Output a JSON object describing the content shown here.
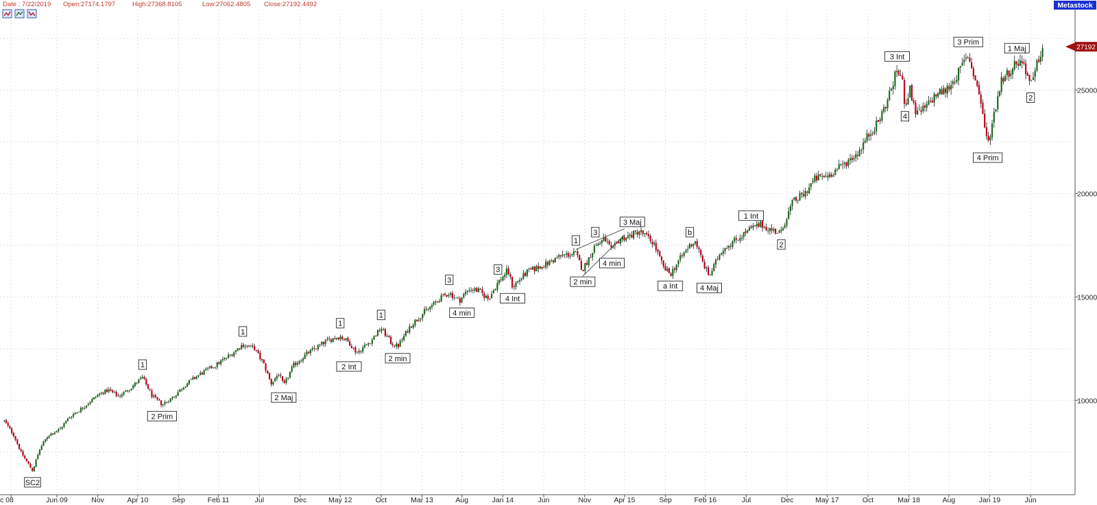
{
  "header": {
    "date": "Date : 7/22/2019",
    "open": "Open:27174.1797",
    "high": "High:27368.8105",
    "low": "Low:27062.4805",
    "close": "Close:27192.4492",
    "badge": "Metastock",
    "last_price_tag": "27192"
  },
  "toolbar_icons": [
    "chart-tool-icon",
    "chart-tool-icon",
    "chart-tool-icon"
  ],
  "colors": {
    "up": "#1a6b1a",
    "down": "#c0001a",
    "header_text": "#c0392b",
    "badge_bg": "#1a2fd0",
    "price_tag": "#a01010"
  },
  "chart_data": {
    "type": "candlestick",
    "y_ticks": [
      10000,
      15000,
      20000,
      25000
    ],
    "y_tick_labels": [
      "10000",
      "15000",
      "20000",
      "25000"
    ],
    "ylim": [
      6000,
      28000
    ],
    "grid": true,
    "x_labels": [
      "c 08",
      "Jun 09",
      "Nov",
      "Apr 10",
      "Sep",
      "Feb 11",
      "Jul",
      "Dec",
      "May 12",
      "Oct",
      "Mar 13",
      "Aug",
      "Jan 14",
      "Jun",
      "Nov",
      "Apr 15",
      "Sep",
      "Feb 16",
      "Jul",
      "Dec",
      "May 17",
      "Oct",
      "Mar 18",
      "Aug",
      "Jan 19",
      "Jun"
    ],
    "x_dates": [
      2008.95,
      2009.42,
      2009.84,
      2010.25,
      2010.67,
      2011.08,
      2011.5,
      2011.92,
      2012.33,
      2012.75,
      2013.17,
      2013.58,
      2014.0,
      2014.42,
      2014.84,
      2015.25,
      2015.67,
      2016.08,
      2016.5,
      2016.92,
      2017.33,
      2017.75,
      2018.17,
      2018.58,
      2019.0,
      2019.42
    ],
    "x_range": [
      2008.85,
      2019.75
    ],
    "path": [
      [
        2008.88,
        9000
      ],
      [
        2008.98,
        8300
      ],
      [
        2009.05,
        7500
      ],
      [
        2009.17,
        6600
      ],
      [
        2009.25,
        7700
      ],
      [
        2009.33,
        8300
      ],
      [
        2009.45,
        8600
      ],
      [
        2009.55,
        9200
      ],
      [
        2009.7,
        9700
      ],
      [
        2009.85,
        10300
      ],
      [
        2009.95,
        10500
      ],
      [
        2010.05,
        10200
      ],
      [
        2010.15,
        10500
      ],
      [
        2010.3,
        11100
      ],
      [
        2010.4,
        10200
      ],
      [
        2010.5,
        9800
      ],
      [
        2010.6,
        10100
      ],
      [
        2010.75,
        10800
      ],
      [
        2010.9,
        11300
      ],
      [
        2011.05,
        11700
      ],
      [
        2011.2,
        12200
      ],
      [
        2011.33,
        12700
      ],
      [
        2011.45,
        12500
      ],
      [
        2011.55,
        11700
      ],
      [
        2011.62,
        10800
      ],
      [
        2011.7,
        11300
      ],
      [
        2011.75,
        10700
      ],
      [
        2011.85,
        11700
      ],
      [
        2012.0,
        12300
      ],
      [
        2012.2,
        12900
      ],
      [
        2012.33,
        13100
      ],
      [
        2012.42,
        12800
      ],
      [
        2012.5,
        12300
      ],
      [
        2012.65,
        12900
      ],
      [
        2012.75,
        13500
      ],
      [
        2012.85,
        12800
      ],
      [
        2012.92,
        12600
      ],
      [
        2013.05,
        13600
      ],
      [
        2013.2,
        14300
      ],
      [
        2013.38,
        15000
      ],
      [
        2013.45,
        15200
      ],
      [
        2013.55,
        14800
      ],
      [
        2013.65,
        15400
      ],
      [
        2013.75,
        15300
      ],
      [
        2013.85,
        14900
      ],
      [
        2013.95,
        15700
      ],
      [
        2014.05,
        16300
      ],
      [
        2014.1,
        15500
      ],
      [
        2014.25,
        16200
      ],
      [
        2014.45,
        16600
      ],
      [
        2014.6,
        17000
      ],
      [
        2014.75,
        17100
      ],
      [
        2014.82,
        16300
      ],
      [
        2014.95,
        17500
      ],
      [
        2015.05,
        17800
      ],
      [
        2015.12,
        17200
      ],
      [
        2015.2,
        17800
      ],
      [
        2015.33,
        18000
      ],
      [
        2015.4,
        18200
      ],
      [
        2015.48,
        17900
      ],
      [
        2015.55,
        17600
      ],
      [
        2015.65,
        16400
      ],
      [
        2015.72,
        16100
      ],
      [
        2015.8,
        16700
      ],
      [
        2015.92,
        17500
      ],
      [
        2015.98,
        17700
      ],
      [
        2016.05,
        16700
      ],
      [
        2016.12,
        16000
      ],
      [
        2016.25,
        17300
      ],
      [
        2016.4,
        17800
      ],
      [
        2016.55,
        18300
      ],
      [
        2016.65,
        18500
      ],
      [
        2016.78,
        18200
      ],
      [
        2016.86,
        18100
      ],
      [
        2016.9,
        18700
      ],
      [
        2016.98,
        19600
      ],
      [
        2017.1,
        20000
      ],
      [
        2017.2,
        20700
      ],
      [
        2017.35,
        20900
      ],
      [
        2017.5,
        21400
      ],
      [
        2017.65,
        22000
      ],
      [
        2017.75,
        22800
      ],
      [
        2017.85,
        23400
      ],
      [
        2017.95,
        24500
      ],
      [
        2018.05,
        26000
      ],
      [
        2018.1,
        25500
      ],
      [
        2018.13,
        24300
      ],
      [
        2018.18,
        25000
      ],
      [
        2018.25,
        23800
      ],
      [
        2018.35,
        24200
      ],
      [
        2018.45,
        24800
      ],
      [
        2018.55,
        25000
      ],
      [
        2018.65,
        25600
      ],
      [
        2018.72,
        26200
      ],
      [
        2018.78,
        26700
      ],
      [
        2018.85,
        25500
      ],
      [
        2018.9,
        24700
      ],
      [
        2018.95,
        23200
      ],
      [
        2018.98,
        22300
      ],
      [
        2019.05,
        24000
      ],
      [
        2019.12,
        25500
      ],
      [
        2019.2,
        25900
      ],
      [
        2019.28,
        26400
      ],
      [
        2019.35,
        26300
      ],
      [
        2019.42,
        25200
      ],
      [
        2019.45,
        25500
      ],
      [
        2019.5,
        26500
      ],
      [
        2019.55,
        27100
      ]
    ],
    "annotations": [
      {
        "text": "SC2",
        "x": 2009.17,
        "y": 6600,
        "pos": "below"
      },
      {
        "text": "1",
        "x": 2010.3,
        "y": 11100,
        "pos": "above"
      },
      {
        "text": "2 Prim",
        "x": 2010.5,
        "y": 9800,
        "pos": "below"
      },
      {
        "text": "1",
        "x": 2011.33,
        "y": 12700,
        "pos": "above"
      },
      {
        "text": "2 Maj",
        "x": 2011.75,
        "y": 10700,
        "pos": "below"
      },
      {
        "text": "1",
        "x": 2012.33,
        "y": 13100,
        "pos": "above"
      },
      {
        "text": "2 Int",
        "x": 2012.42,
        "y": 12200,
        "pos": "below"
      },
      {
        "text": "1",
        "x": 2012.75,
        "y": 13500,
        "pos": "above"
      },
      {
        "text": "2 min",
        "x": 2012.92,
        "y": 12600,
        "pos": "below"
      },
      {
        "text": "3",
        "x": 2013.45,
        "y": 15200,
        "pos": "above"
      },
      {
        "text": "4 min",
        "x": 2013.58,
        "y": 14800,
        "pos": "below"
      },
      {
        "text": "3",
        "x": 2013.95,
        "y": 15700,
        "pos": "above"
      },
      {
        "text": "4 Int",
        "x": 2014.1,
        "y": 15500,
        "pos": "below"
      },
      {
        "text": "1",
        "x": 2014.75,
        "y": 17100,
        "pos": "above"
      },
      {
        "text": "2 min",
        "x": 2014.82,
        "y": 16300,
        "pos": "below"
      },
      {
        "text": "3",
        "x": 2014.95,
        "y": 17500,
        "pos": "above"
      },
      {
        "text": "4 min",
        "x": 2015.12,
        "y": 17200,
        "pos": "below"
      },
      {
        "text": "3 Maj",
        "x": 2015.33,
        "y": 18000,
        "pos": "above"
      },
      {
        "text": "a Int",
        "x": 2015.72,
        "y": 16100,
        "pos": "below"
      },
      {
        "text": "b",
        "x": 2015.92,
        "y": 17500,
        "pos": "above"
      },
      {
        "text": "4 Maj",
        "x": 2016.12,
        "y": 16000,
        "pos": "below"
      },
      {
        "text": "1 Int",
        "x": 2016.55,
        "y": 18300,
        "pos": "above"
      },
      {
        "text": "2",
        "x": 2016.86,
        "y": 18100,
        "pos": "below"
      },
      {
        "text": "3 Int",
        "x": 2018.05,
        "y": 26000,
        "pos": "above"
      },
      {
        "text": "4",
        "x": 2018.13,
        "y": 24300,
        "pos": "below"
      },
      {
        "text": "3 Prim",
        "x": 2018.78,
        "y": 26700,
        "pos": "above"
      },
      {
        "text": "4 Prim",
        "x": 2018.98,
        "y": 22300,
        "pos": "below"
      },
      {
        "text": "1 Maj",
        "x": 2019.28,
        "y": 26400,
        "pos": "above"
      },
      {
        "text": "2",
        "x": 2019.42,
        "y": 25200,
        "pos": "below"
      }
    ]
  }
}
